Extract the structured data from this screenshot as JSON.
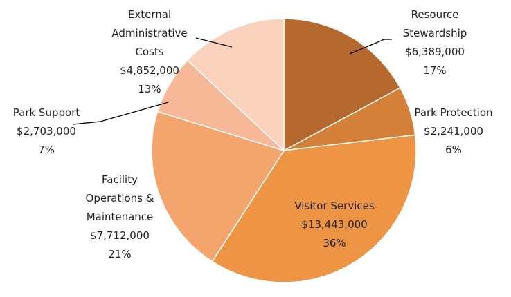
{
  "chart_data": {
    "type": "pie",
    "categories": [
      "Resource Stewardship",
      "Park Protection",
      "Visitor Services",
      "Facility Operations & Maintenance",
      "Park Support",
      "External Administrative Costs"
    ],
    "values": [
      6389000,
      2241000,
      13443000,
      7712000,
      2703000,
      4852000
    ],
    "value_labels": [
      "$6,389,000",
      "$2,241,000",
      "$13,443,000",
      "$7,712,000",
      "$2,703,000",
      "$4,852,000"
    ],
    "percent_labels": [
      "17%",
      "6%",
      "36%",
      "21%",
      "7%",
      "13%"
    ],
    "colors": [
      "#b5692f",
      "#d58039",
      "#ee9445",
      "#f4a56d",
      "#f6b897",
      "#f9d1bd"
    ]
  }
}
